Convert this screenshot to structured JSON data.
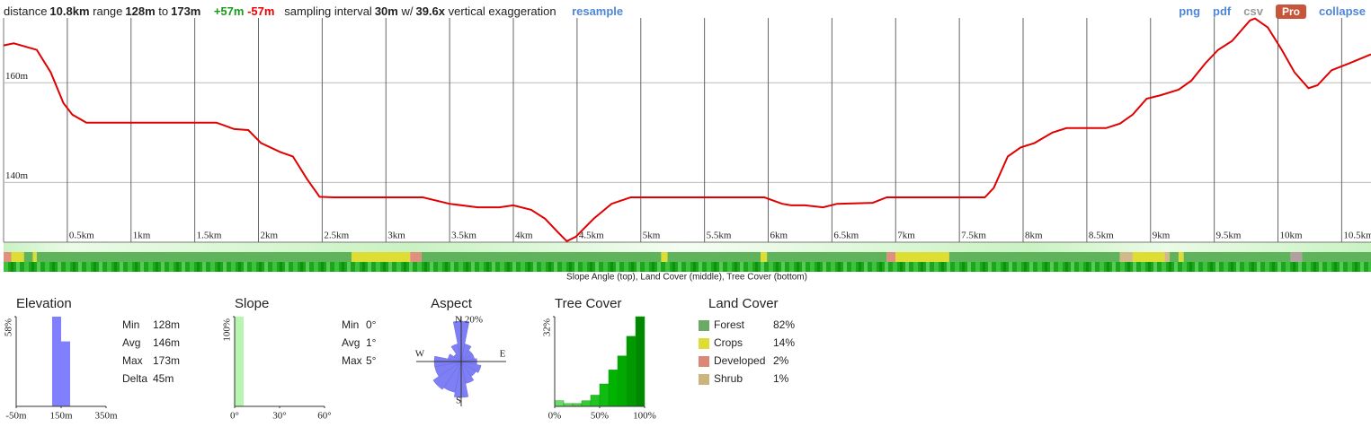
{
  "header": {
    "distance_label": "distance",
    "distance": "10.8km",
    "range_label": "range",
    "range_min": "128m",
    "to": "to",
    "range_max": "173m",
    "gain": "+57m",
    "loss": "-57m",
    "sampling_label": "sampling interval",
    "sampling": "30m",
    "with": "w/",
    "exaggeration": "39.6x",
    "exaggeration_label": "vertical exaggeration",
    "resample": "resample"
  },
  "actions": [
    "png",
    "pdf",
    "csv",
    "Pro",
    "collapse"
  ],
  "strips": {
    "caption": "Slope Angle (top), Land Cover (middle), Tree Cover (bottom)",
    "land_cover": [
      {
        "from": 0,
        "to": 0.06,
        "color": "#e0907f"
      },
      {
        "from": 0.06,
        "to": 0.16,
        "color": "#dddd33"
      },
      {
        "from": 0.16,
        "to": 0.23,
        "color": "#5fb35a"
      },
      {
        "from": 0.23,
        "to": 0.26,
        "color": "#dddd33"
      },
      {
        "from": 0.26,
        "to": 2.73,
        "color": "#5fb35a"
      },
      {
        "from": 2.73,
        "to": 3.19,
        "color": "#dddd33"
      },
      {
        "from": 3.19,
        "to": 3.28,
        "color": "#e0907f"
      },
      {
        "from": 3.28,
        "to": 5.16,
        "color": "#5fb35a"
      },
      {
        "from": 5.16,
        "to": 5.21,
        "color": "#dddd33"
      },
      {
        "from": 5.21,
        "to": 5.94,
        "color": "#5fb35a"
      },
      {
        "from": 5.94,
        "to": 5.99,
        "color": "#dddd33"
      },
      {
        "from": 5.99,
        "to": 6.93,
        "color": "#5fb35a"
      },
      {
        "from": 6.93,
        "to": 7.0,
        "color": "#e0907f"
      },
      {
        "from": 7.0,
        "to": 7.42,
        "color": "#dddd33"
      },
      {
        "from": 7.42,
        "to": 8.76,
        "color": "#5fb35a"
      },
      {
        "from": 8.76,
        "to": 8.86,
        "color": "#d2b98a"
      },
      {
        "from": 8.86,
        "to": 9.11,
        "color": "#dddd33"
      },
      {
        "from": 9.11,
        "to": 9.15,
        "color": "#d2b98a"
      },
      {
        "from": 9.15,
        "to": 9.22,
        "color": "#5fb35a"
      },
      {
        "from": 9.22,
        "to": 9.26,
        "color": "#dddd33"
      },
      {
        "from": 9.26,
        "to": 10.1,
        "color": "#5fb35a"
      },
      {
        "from": 10.1,
        "to": 10.19,
        "color": "#b0a0a0"
      },
      {
        "from": 10.19,
        "to": 10.73,
        "color": "#5fb35a"
      }
    ]
  },
  "chart_data": [
    {
      "type": "line",
      "color": "#e00000",
      "grid": true,
      "x": [
        0,
        0.08,
        0.26,
        0.37,
        0.47,
        0.54,
        0.65,
        1.67,
        1.81,
        1.92,
        2.02,
        2.17,
        2.27,
        2.38,
        2.48,
        2.59,
        3.29,
        3.5,
        3.72,
        3.89,
        4.0,
        4.14,
        4.25,
        4.35,
        4.42,
        4.49,
        4.63,
        4.77,
        4.92,
        5.97,
        6.11,
        6.18,
        6.29,
        6.43,
        6.54,
        6.82,
        6.93,
        7.7,
        7.77,
        7.88,
        7.98,
        8.09,
        8.23,
        8.34,
        8.65,
        8.76,
        8.86,
        8.97,
        9.08,
        9.22,
        9.32,
        9.43,
        9.53,
        9.64,
        9.78,
        9.82,
        9.92,
        10.03,
        10.13,
        10.24,
        10.31,
        10.42,
        10.56,
        10.73
      ],
      "values": [
        167.5,
        167.9,
        166.6,
        162.1,
        155.9,
        153.6,
        152,
        152,
        150.7,
        150.5,
        147.9,
        146.1,
        145.2,
        140.7,
        137.1,
        137,
        137,
        135.7,
        135,
        135,
        135.4,
        134.5,
        132.7,
        130,
        128.2,
        129.1,
        132.7,
        135.7,
        137,
        137,
        135.7,
        135.4,
        135.4,
        135,
        135.7,
        135.9,
        137,
        137,
        138.9,
        145.2,
        147,
        147.9,
        150,
        150.9,
        150.9,
        151.8,
        153.6,
        156.8,
        157.5,
        158.6,
        160.4,
        163.9,
        166.6,
        168.4,
        172.5,
        172.9,
        171.1,
        166.6,
        162.1,
        158.9,
        159.5,
        162.5,
        163.9,
        165.7
      ],
      "xlim": [
        0,
        10.73
      ],
      "ylim": [
        128,
        173
      ],
      "xticks": [
        {
          "value": 0.5,
          "label": "0.5km"
        },
        {
          "value": 1,
          "label": "1km"
        },
        {
          "value": 1.5,
          "label": "1.5km"
        },
        {
          "value": 2,
          "label": "2km"
        },
        {
          "value": 2.5,
          "label": "2.5km"
        },
        {
          "value": 3,
          "label": "3km"
        },
        {
          "value": 3.5,
          "label": "3.5km"
        },
        {
          "value": 4,
          "label": "4km"
        },
        {
          "value": 4.5,
          "label": "4.5km"
        },
        {
          "value": 5,
          "label": "5km"
        },
        {
          "value": 5.5,
          "label": "5.5km"
        },
        {
          "value": 6,
          "label": "6km"
        },
        {
          "value": 6.5,
          "label": "6.5km"
        },
        {
          "value": 7,
          "label": "7km"
        },
        {
          "value": 7.5,
          "label": "7.5km"
        },
        {
          "value": 8,
          "label": "8km"
        },
        {
          "value": 8.5,
          "label": "8.5km"
        },
        {
          "value": 9,
          "label": "9km"
        },
        {
          "value": 9.5,
          "label": "9.5km"
        },
        {
          "value": 10,
          "label": "10km"
        },
        {
          "value": 10.5,
          "label": "10.5km"
        }
      ],
      "yticks": [
        {
          "value": 140,
          "label": "140m"
        },
        {
          "value": 160,
          "label": "160m"
        }
      ]
    },
    {
      "type": "histogram",
      "title": "Elevation",
      "color": "#8080ff",
      "bins": [
        110,
        150,
        190
      ],
      "values": [
        58,
        42
      ],
      "xlim": [
        -50,
        350
      ],
      "ylim": [
        0,
        58
      ],
      "xticks": [
        {
          "value": -50,
          "label": "-50m"
        },
        {
          "value": 150,
          "label": "150m"
        },
        {
          "value": 350,
          "label": "350m"
        }
      ],
      "yticks": [
        {
          "value": 58,
          "label": "58%"
        }
      ],
      "stats": [
        {
          "label": "Min",
          "value": "128m"
        },
        {
          "label": "Avg",
          "value": "146m"
        },
        {
          "label": "Max",
          "value": "173m"
        },
        {
          "label": "Delta",
          "value": "45m"
        }
      ]
    },
    {
      "type": "histogram",
      "title": "Slope",
      "color": "#b8f5b0",
      "bins": [
        0,
        6
      ],
      "values": [
        100
      ],
      "xlim": [
        0,
        60
      ],
      "ylim": [
        0,
        100
      ],
      "xticks": [
        {
          "value": 0,
          "label": "0°"
        },
        {
          "value": 30,
          "label": "30°"
        },
        {
          "value": 60,
          "label": "60°"
        }
      ],
      "yticks": [
        {
          "value": 100,
          "label": "100%"
        }
      ],
      "stats": [
        {
          "label": "Min",
          "value": "0°"
        },
        {
          "label": "Avg",
          "value": "1°"
        },
        {
          "label": "Max",
          "value": "5°"
        }
      ]
    },
    {
      "type": "rose",
      "title": "Aspect",
      "color": "#7f7ff5",
      "categories": [
        "N",
        null,
        null,
        null,
        "E",
        null,
        null,
        null,
        "S",
        null,
        null,
        null,
        "W",
        null,
        null,
        null
      ],
      "values": [
        18,
        8,
        6,
        6,
        7,
        9,
        8,
        10,
        16,
        14,
        15,
        12,
        12,
        6,
        4,
        8
      ],
      "rlim": [
        0,
        20
      ],
      "rticks": [
        {
          "value": 20,
          "label": "20%"
        }
      ]
    },
    {
      "type": "histogram",
      "title": "Tree Cover",
      "bins": [
        0,
        10,
        20,
        30,
        40,
        50,
        60,
        70,
        80,
        90,
        100
      ],
      "values": [
        2,
        1,
        1,
        2,
        4,
        8,
        13,
        18,
        25,
        32
      ],
      "colors": [
        "#66dd66",
        "#5cd65c",
        "#52cc52",
        "#33cc33",
        "#22c422",
        "#11bb11",
        "#00b300",
        "#00aa00",
        "#009900",
        "#008800"
      ],
      "xlim": [
        0,
        100
      ],
      "ylim": [
        0,
        32
      ],
      "xticks": [
        {
          "value": 0,
          "label": "0%"
        },
        {
          "value": 50,
          "label": "50%"
        },
        {
          "value": 100,
          "label": "100%"
        }
      ],
      "yticks": [
        {
          "value": 32,
          "label": "32%"
        }
      ]
    },
    {
      "type": "legend",
      "title": "Land Cover",
      "categories": [
        "Forest",
        "Crops",
        "Developed",
        "Shrub"
      ],
      "values": [
        82,
        14,
        2,
        1
      ],
      "value_labels": [
        "82%",
        "14%",
        "2%",
        "1%"
      ],
      "colors": [
        "#6aaa64",
        "#dddd33",
        "#dd8877",
        "#ccb57a"
      ]
    }
  ]
}
